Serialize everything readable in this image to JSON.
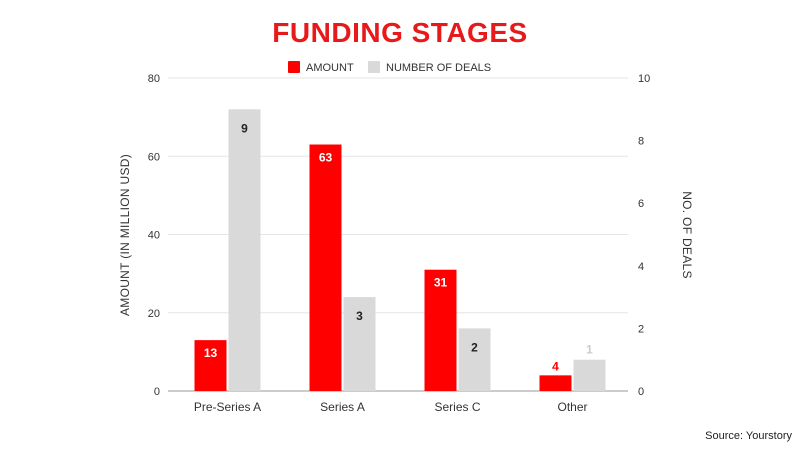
{
  "chart_data": {
    "type": "bar",
    "title": "FUNDING STAGES",
    "categories": [
      "Pre-Series A",
      "Series A",
      "Series C",
      "Other"
    ],
    "series": [
      {
        "name": "AMOUNT",
        "axis": "left",
        "color": "#ff0000",
        "values": [
          13,
          63,
          31,
          4
        ],
        "labels": [
          "13",
          "63",
          "31",
          "4"
        ]
      },
      {
        "name": "NUMBER OF DEALS",
        "axis": "right",
        "color": "#d9d9d9",
        "values": [
          9,
          3,
          2,
          1
        ],
        "labels": [
          "9",
          "3",
          "2",
          "1"
        ]
      }
    ],
    "ylabel": "AMOUNT (IN MILLION USD)",
    "y2label": "NO. OF DEALS",
    "ylim": [
      0,
      80
    ],
    "y2lim": [
      0,
      10
    ],
    "yticks": [
      "0",
      "20",
      "40",
      "60",
      "80"
    ],
    "y2ticks": [
      "0",
      "2",
      "4",
      "6",
      "8",
      "10"
    ],
    "grid": true,
    "legend_position": "top-center"
  },
  "source": "Source: Yourstory",
  "colors": {
    "title": "#e8191a",
    "amount_label": "#ffffff",
    "amount_label_outside": "#ff0000",
    "deals_label": "#222222",
    "deals_label_outside": "#cccccc",
    "grid": "#e6e6e6",
    "axis": "#999999"
  }
}
